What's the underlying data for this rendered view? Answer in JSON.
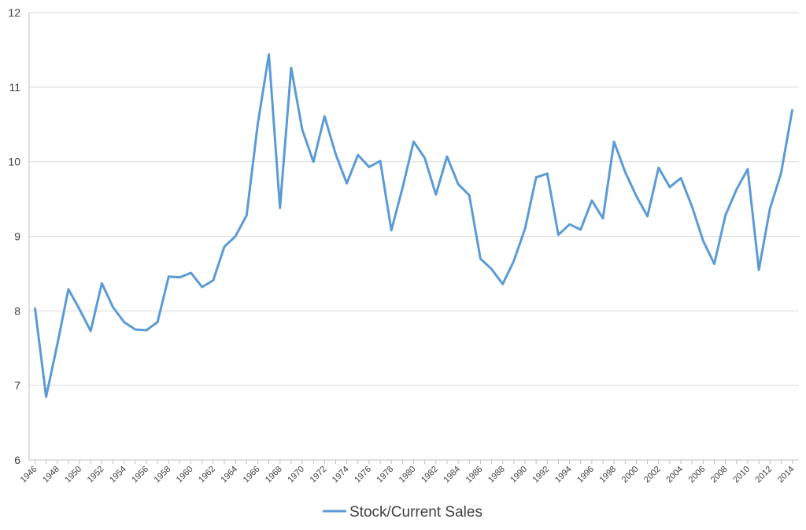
{
  "chart_data": {
    "type": "line",
    "title": "",
    "xlabel": "",
    "ylabel": "",
    "ylim": [
      6,
      12
    ],
    "yticks": [
      6,
      7,
      8,
      9,
      10,
      11,
      12
    ],
    "x_tick_labels": [
      "1946",
      "1948",
      "1950",
      "1952",
      "1954",
      "1956",
      "1958",
      "1960",
      "1962",
      "1964",
      "1966",
      "1968",
      "1970",
      "1972",
      "1974",
      "1976",
      "1978",
      "1980",
      "1982",
      "1984",
      "1986",
      "1988",
      "1990",
      "1992",
      "1994",
      "1996",
      "1998",
      "2000",
      "2002",
      "2004",
      "2006",
      "2008",
      "2010",
      "2012",
      "2014"
    ],
    "grid": "horizontal",
    "legend_position": "bottom",
    "line_color": "#5B9BD5",
    "series": [
      {
        "name": "Stock/Current Sales",
        "x": [
          1946,
          1947,
          1948,
          1949,
          1950,
          1951,
          1952,
          1953,
          1954,
          1955,
          1956,
          1957,
          1958,
          1959,
          1960,
          1961,
          1962,
          1963,
          1964,
          1965,
          1966,
          1967,
          1968,
          1969,
          1970,
          1971,
          1972,
          1973,
          1974,
          1975,
          1976,
          1977,
          1978,
          1979,
          1980,
          1981,
          1982,
          1983,
          1984,
          1985,
          1986,
          1987,
          1988,
          1989,
          1990,
          1991,
          1992,
          1993,
          1994,
          1995,
          1996,
          1997,
          1998,
          1999,
          2000,
          2001,
          2002,
          2003,
          2004,
          2005,
          2006,
          2007,
          2008,
          2009,
          2010,
          2011,
          2012,
          2013,
          2014
        ],
        "values": [
          8.03,
          6.85,
          7.55,
          8.29,
          8.02,
          7.73,
          8.37,
          8.05,
          7.85,
          7.75,
          7.74,
          7.85,
          8.46,
          8.45,
          8.51,
          8.32,
          8.41,
          8.86,
          9.0,
          9.28,
          10.5,
          11.44,
          9.38,
          11.26,
          10.43,
          10.0,
          10.61,
          10.1,
          9.71,
          10.09,
          9.93,
          10.01,
          9.08,
          9.65,
          10.27,
          10.05,
          9.56,
          10.07,
          9.7,
          9.55,
          8.7,
          8.56,
          8.36,
          8.67,
          9.1,
          9.79,
          9.84,
          9.02,
          9.16,
          9.09,
          9.48,
          9.24,
          10.27,
          9.86,
          9.54,
          9.27,
          9.92,
          9.66,
          9.78,
          9.4,
          8.94,
          8.63,
          9.28,
          9.63,
          9.9,
          8.55,
          9.37,
          9.85,
          10.69
        ]
      }
    ]
  }
}
